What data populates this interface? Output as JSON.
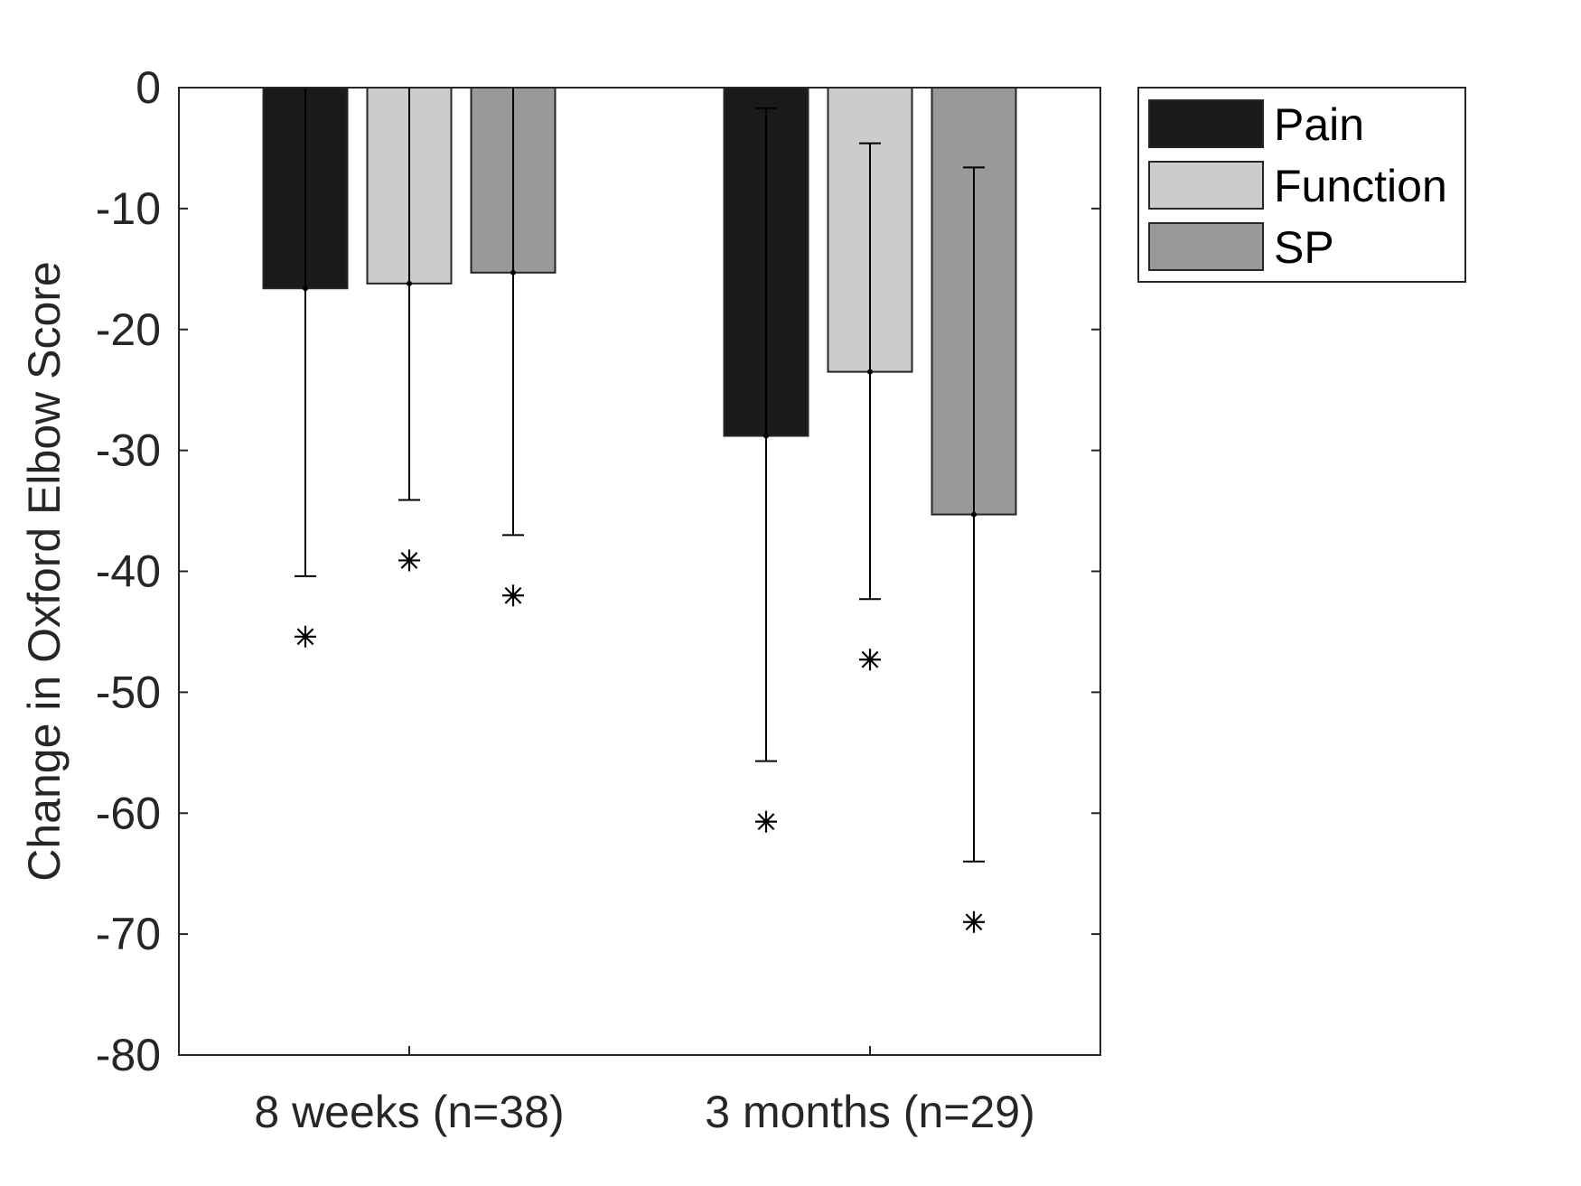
{
  "chart_data": {
    "type": "bar",
    "title": "",
    "xlabel": "",
    "ylabel": "Change in Oxford Elbow Score",
    "ylim": [
      -80,
      0
    ],
    "yticks": [
      0,
      -10,
      -20,
      -30,
      -40,
      -50,
      -60,
      -70,
      -80
    ],
    "ytick_labels": [
      "0",
      "-10",
      "-20",
      "-30",
      "-40",
      "-50",
      "-60",
      "-70",
      "-80"
    ],
    "grid": false,
    "categories": [
      "8 weeks (n=38)",
      "3 months (n=29)"
    ],
    "series": [
      {
        "name": "Pain",
        "color": "#1a1a1a",
        "values": [
          -16.6,
          -28.8
        ],
        "error_lower": [
          -40.4,
          -55.7
        ],
        "error_upper": [
          0,
          -1.7
        ],
        "asterisk": [
          -45.4,
          -60.7
        ]
      },
      {
        "name": "Function",
        "color": "#cccccc",
        "values": [
          -16.2,
          -23.5
        ],
        "error_lower": [
          -34.1,
          -42.3
        ],
        "error_upper": [
          0,
          -4.6
        ],
        "asterisk": [
          -39.1,
          -47.3
        ]
      },
      {
        "name": "SP",
        "color": "#999999",
        "values": [
          -15.3,
          -35.3
        ],
        "error_lower": [
          -37.0,
          -64.0
        ],
        "error_upper": [
          0,
          -6.6
        ],
        "asterisk": [
          -42.0,
          -69.0
        ]
      }
    ],
    "legend": {
      "entries": [
        "Pain",
        "Function",
        "SP"
      ],
      "placement": "outside-top-right"
    },
    "marker_note": "asterisk markers below each bar"
  }
}
